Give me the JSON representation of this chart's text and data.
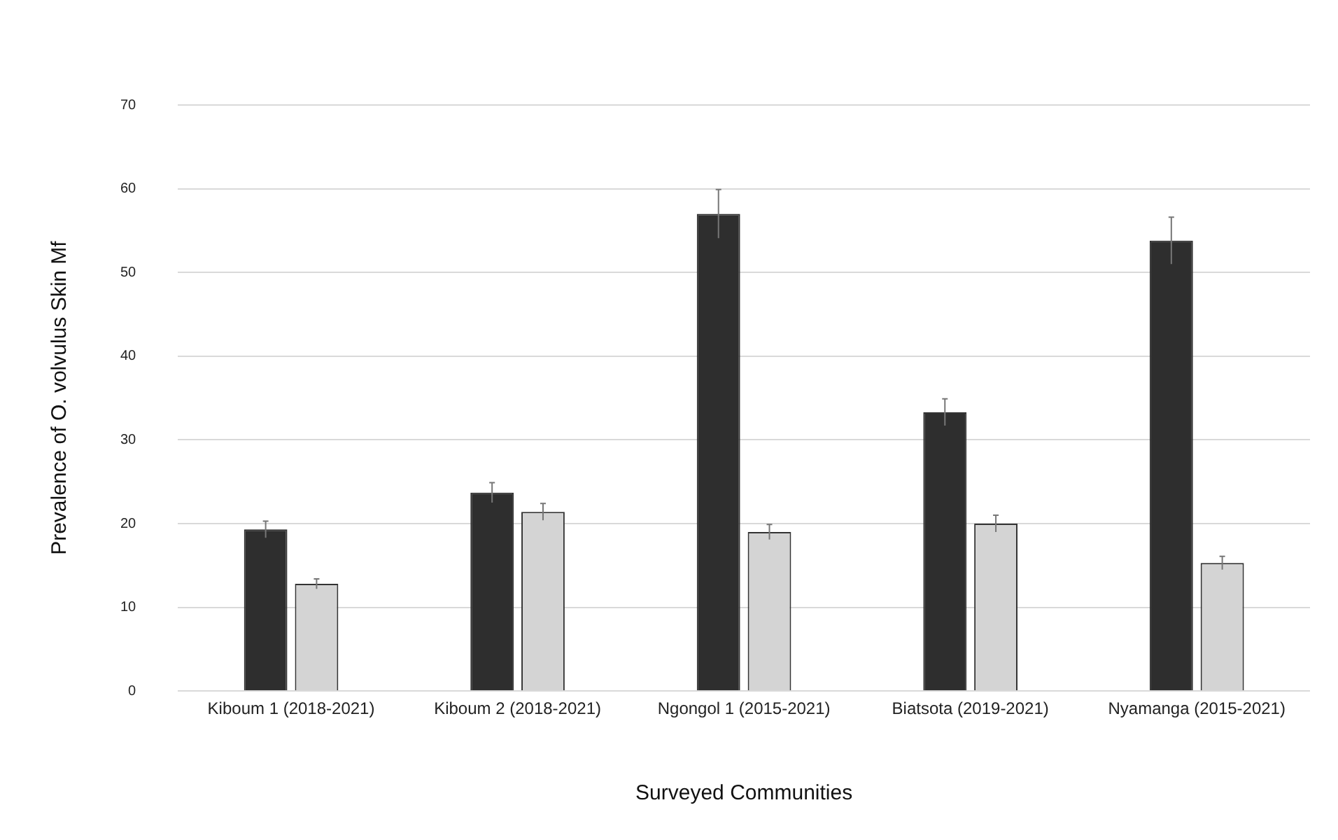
{
  "chart_data": {
    "type": "bar",
    "xlabel": "Surveyed Communities",
    "ylabel": "Prevalence of O. volvulus Skin Mf",
    "categories": [
      "Kiboum 1 (2018-2021)",
      "Kiboum 2 (2018-2021)",
      "Ngongol 1 (2015-2021)",
      "Biatsota (2019-2021)",
      "Nyamanga (2015-2021)"
    ],
    "series": [
      {
        "color": "#2e2e2e",
        "values": [
          19.3,
          23.7,
          57.0,
          33.3,
          53.8
        ],
        "errors": [
          1.0,
          1.2,
          2.9,
          1.6,
          2.8
        ]
      },
      {
        "color": "#d4d4d4",
        "values": [
          12.8,
          21.4,
          19.0,
          20.0,
          15.3
        ],
        "errors": [
          0.6,
          1.0,
          0.9,
          1.0,
          0.8
        ]
      }
    ],
    "ylim": [
      0,
      70
    ],
    "yticks": [
      0,
      10,
      20,
      30,
      40,
      50,
      60,
      70
    ],
    "grid": "y",
    "legend": false
  }
}
